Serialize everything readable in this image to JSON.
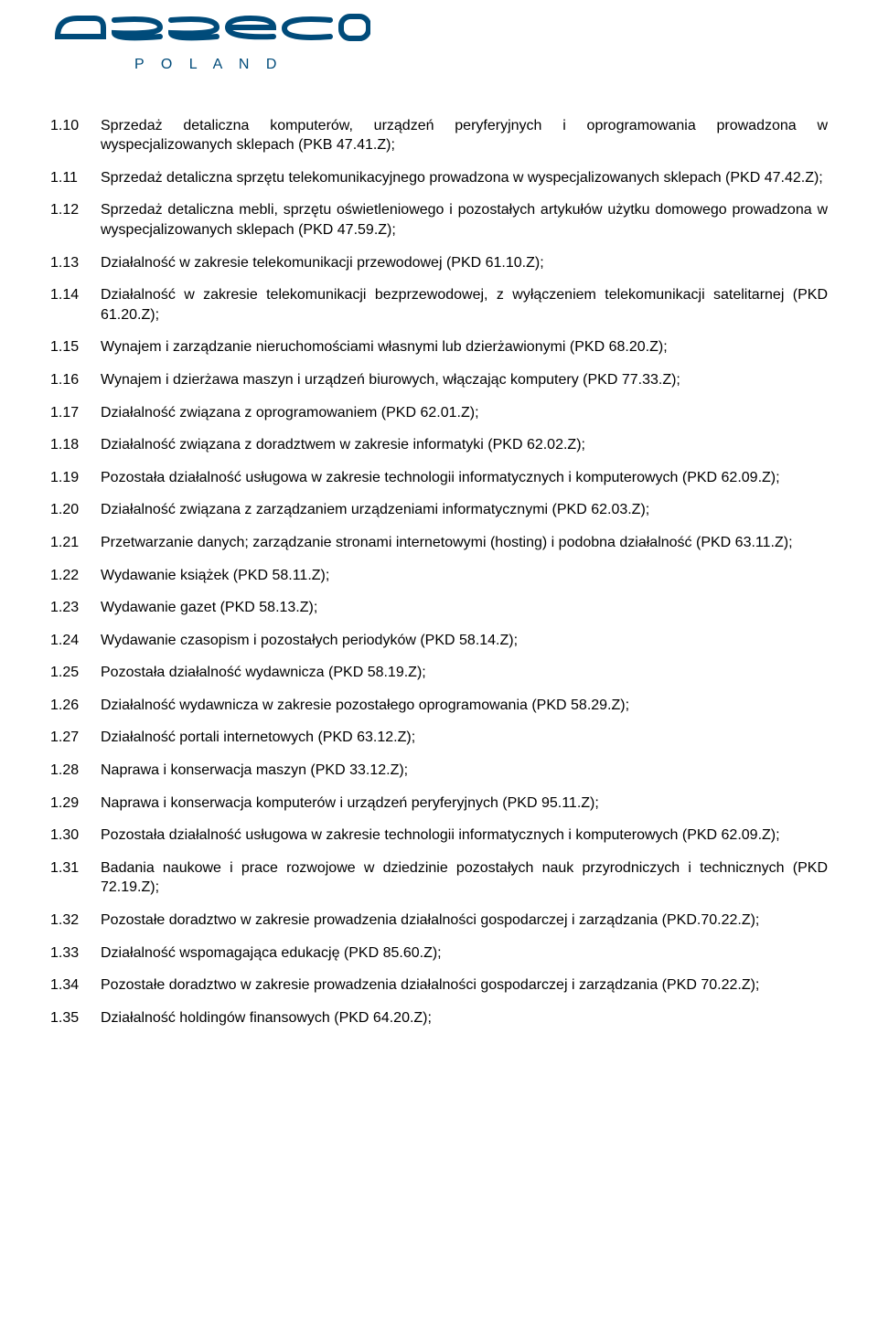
{
  "logo": {
    "top_text": "asseco",
    "bottom_text": "POLAND",
    "color": "#004b7a",
    "top_fontsize": 40,
    "bottom_fontsize": 16,
    "bottom_letter_spacing": 7
  },
  "text_color": "#000000",
  "font_size": 16,
  "items": [
    {
      "num": "1.10",
      "justify": true,
      "text": "Sprzedaż detaliczna komputerów, urządzeń peryferyjnych i oprogramowania prowadzona w wyspecjalizowanych sklepach (PKB 47.41.Z);"
    },
    {
      "num": "1.11",
      "justify": true,
      "text": "Sprzedaż detaliczna sprzętu telekomunikacyjnego prowadzona w wyspecjalizowanych sklepach (PKD 47.42.Z);"
    },
    {
      "num": "1.12",
      "justify": true,
      "text": "Sprzedaż detaliczna mebli, sprzętu oświetleniowego i pozostałych artykułów użytku domowego prowadzona w wyspecjalizowanych sklepach (PKD 47.59.Z);"
    },
    {
      "num": "1.13",
      "justify": false,
      "text": "Działalność w zakresie telekomunikacji przewodowej (PKD 61.10.Z);"
    },
    {
      "num": "1.14",
      "justify": true,
      "text": "Działalność w zakresie telekomunikacji bezprzewodowej, z wyłączeniem telekomunikacji satelitarnej (PKD 61.20.Z);"
    },
    {
      "num": "1.15",
      "justify": false,
      "text": "Wynajem i zarządzanie nieruchomościami własnymi lub dzierżawionymi (PKD 68.20.Z);"
    },
    {
      "num": "1.16",
      "justify": false,
      "text": "Wynajem i dzierżawa maszyn i urządzeń biurowych, włączając komputery (PKD 77.33.Z);"
    },
    {
      "num": "1.17",
      "justify": false,
      "text": "Działalność związana z oprogramowaniem (PKD 62.01.Z);"
    },
    {
      "num": "1.18",
      "justify": false,
      "text": "Działalność związana z doradztwem w zakresie informatyki (PKD 62.02.Z);"
    },
    {
      "num": "1.19",
      "justify": true,
      "text": "Pozostała działalność usługowa w zakresie technologii informatycznych i komputerowych (PKD 62.09.Z);"
    },
    {
      "num": "1.20",
      "justify": false,
      "text": "Działalność związana z zarządzaniem urządzeniami informatycznymi (PKD 62.03.Z);"
    },
    {
      "num": "1.21",
      "justify": true,
      "text": "Przetwarzanie danych; zarządzanie stronami internetowymi (hosting) i podobna działalność (PKD 63.11.Z);"
    },
    {
      "num": "1.22",
      "justify": false,
      "text": "Wydawanie książek (PKD 58.11.Z);"
    },
    {
      "num": "1.23",
      "justify": false,
      "text": "Wydawanie gazet (PKD 58.13.Z);"
    },
    {
      "num": "1.24",
      "justify": false,
      "text": "Wydawanie czasopism i pozostałych periodyków (PKD 58.14.Z);"
    },
    {
      "num": "1.25",
      "justify": false,
      "text": "Pozostała działalność wydawnicza (PKD 58.19.Z);"
    },
    {
      "num": "1.26",
      "justify": false,
      "text": "Działalność wydawnicza w zakresie pozostałego oprogramowania (PKD 58.29.Z);"
    },
    {
      "num": "1.27",
      "justify": false,
      "text": "Działalność portali internetowych (PKD 63.12.Z);"
    },
    {
      "num": "1.28",
      "justify": false,
      "text": "Naprawa i konserwacja maszyn (PKD 33.12.Z);"
    },
    {
      "num": "1.29",
      "justify": false,
      "text": "Naprawa i konserwacja komputerów i urządzeń peryferyjnych (PKD 95.11.Z);"
    },
    {
      "num": "1.30",
      "justify": true,
      "text": "Pozostała działalność usługowa w zakresie technologii informatycznych i komputerowych (PKD 62.09.Z);"
    },
    {
      "num": "1.31",
      "justify": true,
      "text": "Badania naukowe i prace rozwojowe w dziedzinie pozostałych nauk przyrodniczych i technicznych (PKD 72.19.Z);"
    },
    {
      "num": "1.32",
      "justify": true,
      "text": "Pozostałe doradztwo w zakresie prowadzenia działalności gospodarczej i zarządzania (PKD.70.22.Z);"
    },
    {
      "num": "1.33",
      "justify": false,
      "text": "Działalność wspomagająca edukację (PKD 85.60.Z);"
    },
    {
      "num": "1.34",
      "justify": true,
      "text": "Pozostałe doradztwo w zakresie prowadzenia działalności gospodarczej i zarządzania (PKD 70.22.Z);"
    },
    {
      "num": "1.35",
      "justify": false,
      "text": "Działalność holdingów finansowych (PKD 64.20.Z);"
    }
  ]
}
